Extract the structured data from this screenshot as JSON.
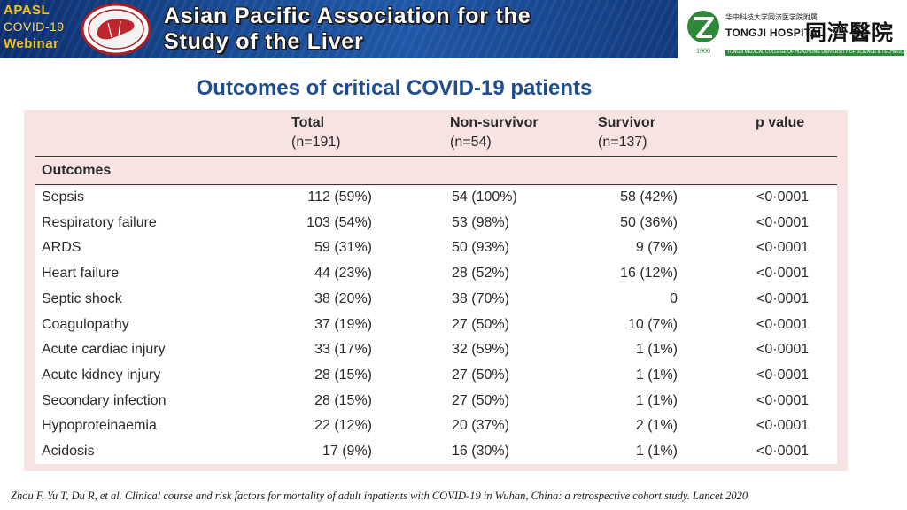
{
  "banner": {
    "apasl_lines": [
      "APASL",
      "COVID-19",
      "Webinar"
    ],
    "title_line1": "Asian Pacific Association for the",
    "title_line2": "Study of the Liver",
    "colors": {
      "background": "#1a4b94",
      "accent": "#f6c21a",
      "title": "#ffffff"
    }
  },
  "hospital_logo": {
    "chinese_small": "华中科技大学同济医学院附属",
    "name": "TONGJI HOSPITAL",
    "chinese_large": "同濟醫院",
    "mark_year": "1900",
    "subtitle": "TONGJI MEDICAL COLLEGE OF HUAZHONG UNIVERSITY OF SCIENCE & TECHNOLOGY",
    "colors": {
      "mark": "#2e8a3a"
    }
  },
  "slide": {
    "title": "Outcomes of critical COVID-19 patients",
    "title_color": "#1f4e8c"
  },
  "table": {
    "background": "#f7e3e1",
    "columns": [
      {
        "header": "Total",
        "sub": "(n=191)"
      },
      {
        "header": "Non-survivor",
        "sub": "(n=54)"
      },
      {
        "header": "Survivor",
        "sub": "(n=137)"
      },
      {
        "header": "p value",
        "sub": ""
      }
    ],
    "section": "Outcomes",
    "rows": [
      {
        "name": "Sepsis",
        "total": "112 (59%)",
        "non_survivor": "54 (100%)",
        "survivor": "58 (42%)",
        "p": "<0·0001"
      },
      {
        "name": "Respiratory failure",
        "total": "103 (54%)",
        "non_survivor": "53 (98%)",
        "survivor": "50 (36%)",
        "p": "<0·0001"
      },
      {
        "name": "ARDS",
        "total": "59 (31%)",
        "non_survivor": "50 (93%)",
        "survivor": "9 (7%)",
        "p": "<0·0001"
      },
      {
        "name": "Heart failure",
        "total": "44 (23%)",
        "non_survivor": "28 (52%)",
        "survivor": "16 (12%)",
        "p": "<0·0001"
      },
      {
        "name": "Septic shock",
        "total": "38 (20%)",
        "non_survivor": "38 (70%)",
        "survivor": "0",
        "p": "<0·0001"
      },
      {
        "name": "Coagulopathy",
        "total": "37 (19%)",
        "non_survivor": "27 (50%)",
        "survivor": "10 (7%)",
        "p": "<0·0001"
      },
      {
        "name": "Acute cardiac injury",
        "total": "33 (17%)",
        "non_survivor": "32 (59%)",
        "survivor": "1 (1%)",
        "p": "<0·0001"
      },
      {
        "name": "Acute kidney injury",
        "total": "28 (15%)",
        "non_survivor": "27 (50%)",
        "survivor": "1 (1%)",
        "p": "<0·0001"
      },
      {
        "name": "Secondary infection",
        "total": "28 (15%)",
        "non_survivor": "27 (50%)",
        "survivor": "1 (1%)",
        "p": "<0·0001"
      },
      {
        "name": "Hypoproteinaemia",
        "total": "22 (12%)",
        "non_survivor": "20 (37%)",
        "survivor": "2 (1%)",
        "p": "<0·0001"
      },
      {
        "name": "Acidosis",
        "total": "17 (9%)",
        "non_survivor": "16 (30%)",
        "survivor": "1 (1%)",
        "p": "<0·0001"
      }
    ]
  },
  "citation": "Zhou F, Yu T, Du R, et al. Clinical course and risk factors for mortality of adult inpatients with COVID-19 in Wuhan, China: a retrospective  cohort study. Lancet 2020"
}
